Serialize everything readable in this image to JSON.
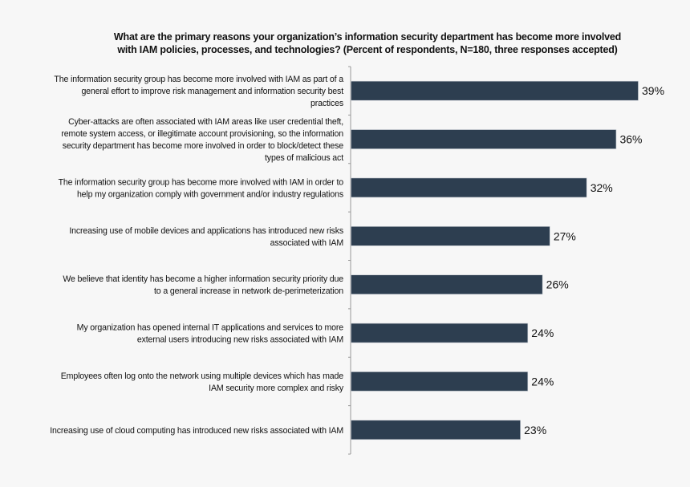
{
  "chart_data": {
    "type": "bar",
    "orientation": "horizontal",
    "title": [
      "What are the primary reasons your organization’s information security department has become more involved",
      "with IAM policies, processes, and technologies? (Percent of respondents, N=180, three responses accepted)"
    ],
    "xlabel": "",
    "ylabel": "",
    "xlim": [
      0,
      40
    ],
    "grid": false,
    "bar_color": "#2d3e50",
    "categories": [
      [
        "The information security group has become more involved with IAM as part of a",
        "general effort to improve risk management and information security best",
        "practices"
      ],
      [
        "Cyber-attacks are often associated with IAM areas like user credential theft,",
        "remote system access, or illegitimate account provisioning, so the information",
        "security department has become more involved in order to block/detect these",
        "types of malicious act"
      ],
      [
        "The information security group has become more involved with IAM in order to",
        "help my organization comply with government and/or industry regulations"
      ],
      [
        "Increasing use of mobile devices and applications has introduced new risks",
        "associated with IAM"
      ],
      [
        "We believe that identity has become a higher information security priority due",
        "to a general increase in network de-perimeterization"
      ],
      [
        "My organization has opened internal IT applications and services to more",
        "external users introducing new risks associated with IAM"
      ],
      [
        "Employees often log onto the network using multiple devices which has made",
        "IAM security more complex and risky"
      ],
      [
        "Increasing use of cloud computing has introduced new risks associated with IAM"
      ]
    ],
    "values": [
      39,
      36,
      32,
      27,
      26,
      24,
      24,
      23
    ],
    "data_labels": [
      "39%",
      "36%",
      "32%",
      "27%",
      "26%",
      "24%",
      "24%",
      "23%"
    ]
  }
}
